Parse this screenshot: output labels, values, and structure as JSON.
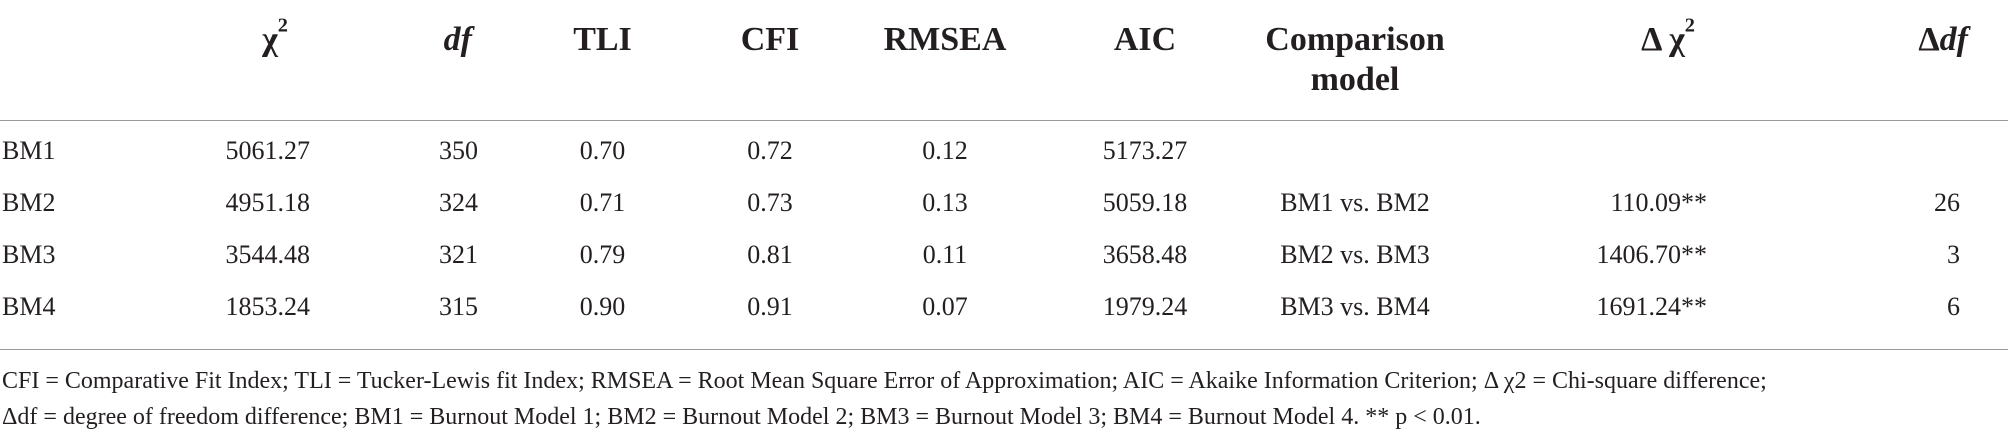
{
  "table": {
    "headers": {
      "model": "",
      "chi2_base": "χ",
      "chi2_sup": "2",
      "df": "df",
      "tli": "TLI",
      "cfi": "CFI",
      "rmsea": "RMSEA",
      "aic": "AIC",
      "comparison_line1": "Comparison",
      "comparison_line2": "model",
      "delta_chi2_base": "Δ χ",
      "delta_chi2_sup": "2",
      "delta_df_prefix": "Δ",
      "delta_df_ital": "df"
    },
    "rows": [
      {
        "model": "BM1",
        "chi2": "5061.27",
        "df": "350",
        "tli": "0.70",
        "cfi": "0.72",
        "rmsea": "0.12",
        "aic": "5173.27",
        "comparison": "",
        "delta_chi2": "",
        "delta_df": ""
      },
      {
        "model": "BM2",
        "chi2": "4951.18",
        "df": "324",
        "tli": "0.71",
        "cfi": "0.73",
        "rmsea": "0.13",
        "aic": "5059.18",
        "comparison": "BM1 vs. BM2",
        "delta_chi2": "110.09**",
        "delta_df": "26"
      },
      {
        "model": "BM3",
        "chi2": "3544.48",
        "df": "321",
        "tli": "0.79",
        "cfi": "0.81",
        "rmsea": "0.11",
        "aic": "3658.48",
        "comparison": "BM2 vs. BM3",
        "delta_chi2": "1406.70**",
        "delta_df": "3"
      },
      {
        "model": "BM4",
        "chi2": "1853.24",
        "df": "315",
        "tli": "0.90",
        "cfi": "0.91",
        "rmsea": "0.07",
        "aic": "1979.24",
        "comparison": "BM3 vs. BM4",
        "delta_chi2": "1691.24**",
        "delta_df": "6"
      }
    ]
  },
  "footnote": {
    "line1": "CFI = Comparative Fit Index; TLI = Tucker-Lewis fit Index; RMSEA = Root Mean Square Error of Approximation; AIC = Akaike Information Criterion; Δ χ2 = Chi-square difference;",
    "line2": "Δdf = degree of freedom difference; BM1 = Burnout Model 1; BM2 = Burnout Model 2; BM3 = Burnout Model 3; BM4 = Burnout Model 4. ** p < 0.01."
  }
}
